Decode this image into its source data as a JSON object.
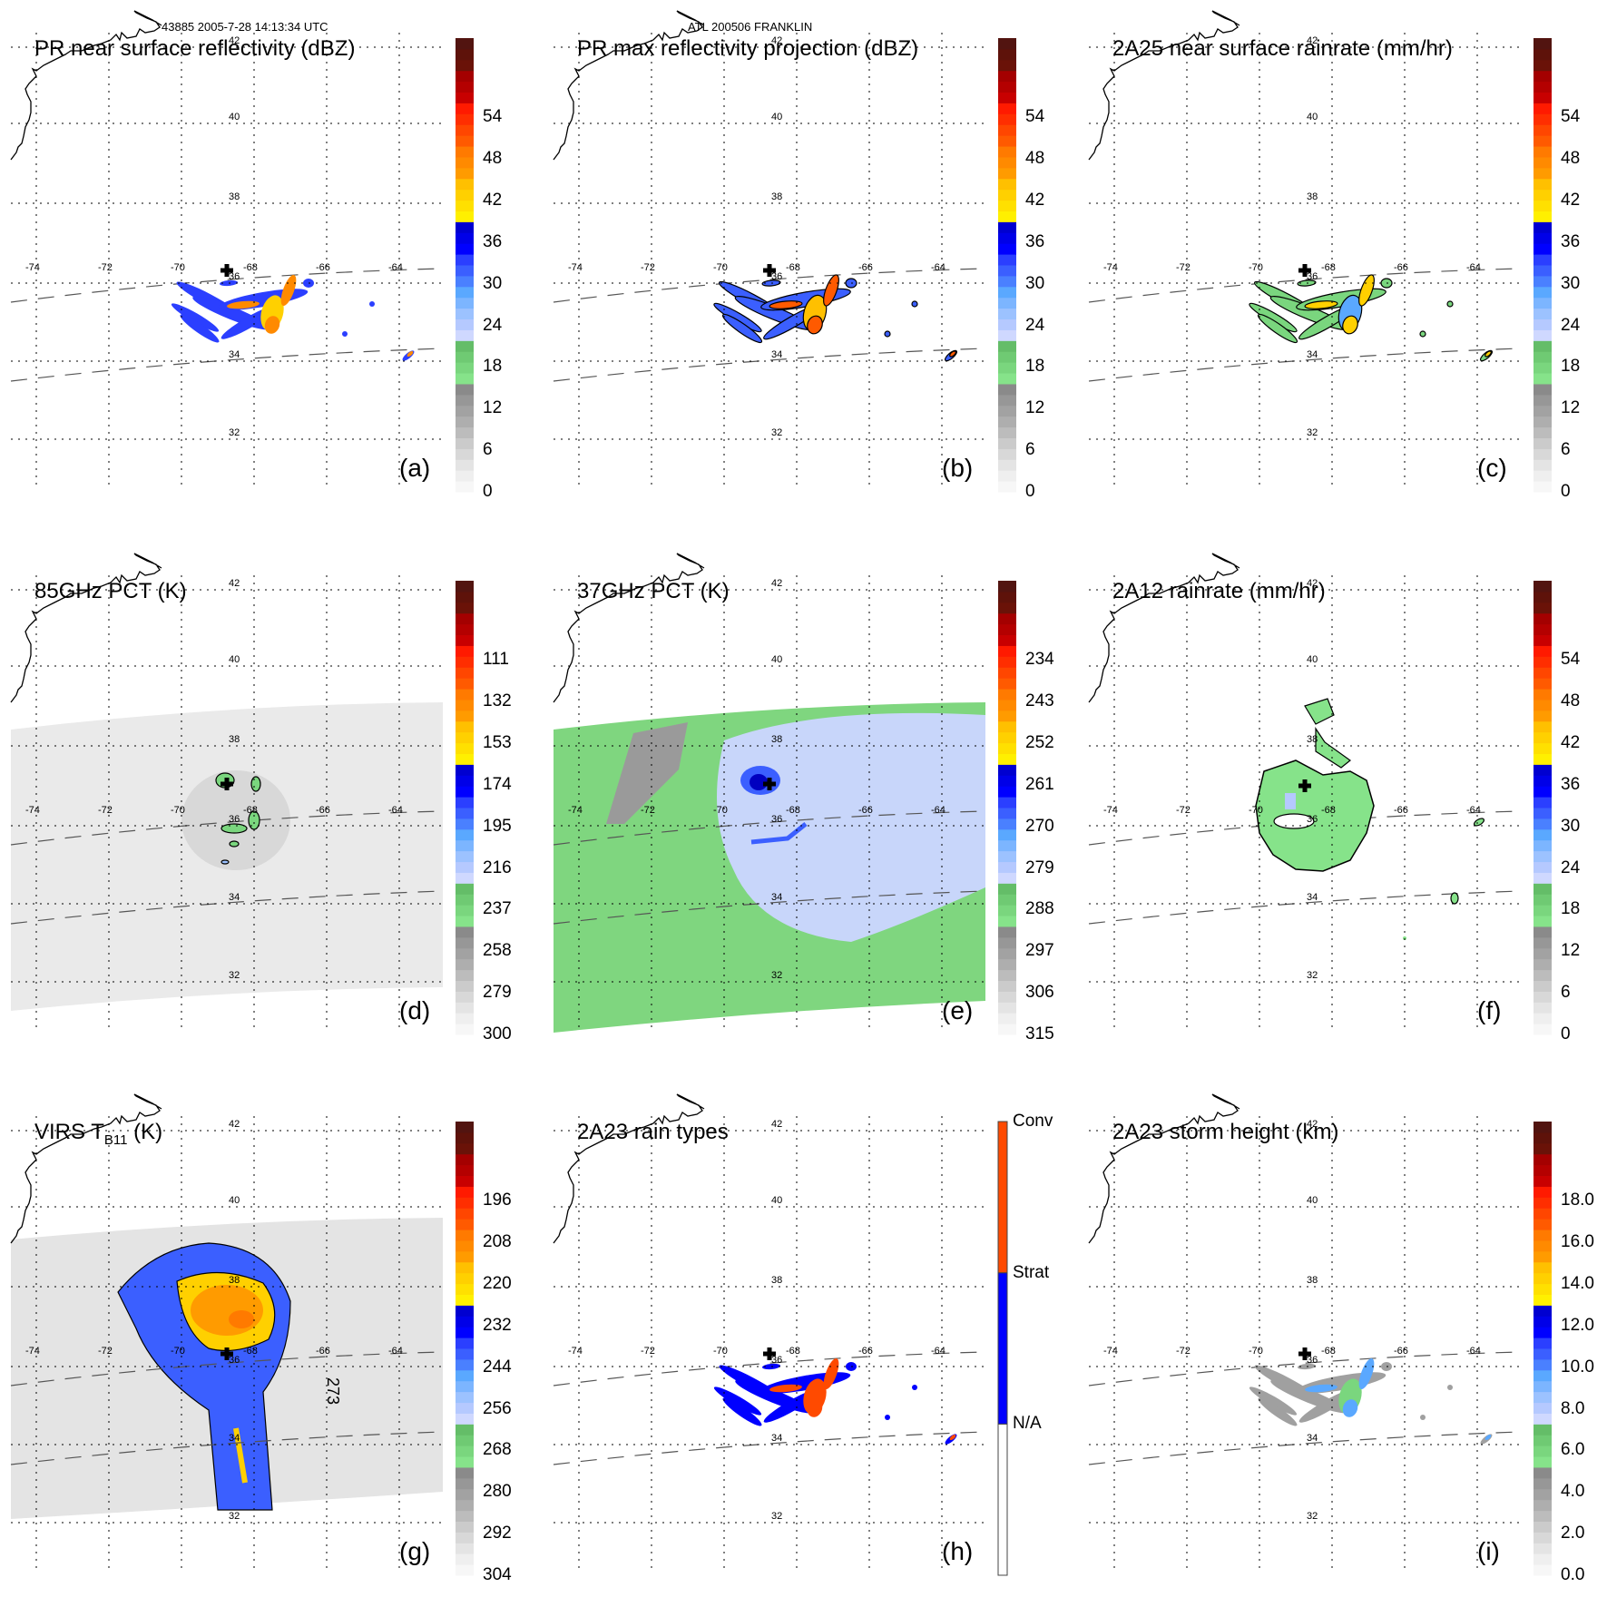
{
  "header": {
    "orbit_time": "43885 2005-7-28 14:13:34 UTC",
    "storm": "ATL 200506 FRANKLIN"
  },
  "map": {
    "lon_labels": [
      "-74",
      "-72",
      "-70",
      "-68",
      "-66",
      "-64"
    ],
    "lat_labels": [
      "42",
      "40",
      "38",
      "36",
      "34",
      "32"
    ],
    "storm_center_marker": "plus-icon"
  },
  "chart_data": [
    {
      "type": "heatmap",
      "id": "a",
      "panel_label": "(a)",
      "title": "PR near surface reflectivity (dBZ)",
      "colorbar": {
        "ticks": [
          "0",
          "6",
          "12",
          "18",
          "24",
          "30",
          "36",
          "42",
          "48",
          "54"
        ],
        "range": [
          0,
          60
        ]
      },
      "field_extent": "narrow PR swath; rain bands south of center near 35-36N, 70-67.5W; isolated cells near 34N, 64W",
      "swath": true
    },
    {
      "type": "heatmap",
      "id": "b",
      "panel_label": "(b)",
      "title": "PR max reflectivity projection (dBZ)",
      "colorbar": {
        "ticks": [
          "0",
          "6",
          "12",
          "18",
          "24",
          "30",
          "36",
          "42",
          "48",
          "54"
        ],
        "range": [
          0,
          60
        ]
      },
      "field_extent": "narrow PR swath; contoured bands south of center",
      "swath": true
    },
    {
      "type": "heatmap",
      "id": "c",
      "panel_label": "(c)",
      "title": "2A25 near surface rainrate (mm/hr)",
      "colorbar": {
        "ticks": [
          "0",
          "6",
          "12",
          "18",
          "24",
          "30",
          "36",
          "42",
          "48",
          "54"
        ],
        "range": [
          0,
          60
        ]
      },
      "field_extent": "narrow PR swath; light rain (green) bands",
      "swath": true
    },
    {
      "type": "heatmap",
      "id": "d",
      "panel_label": "(d)",
      "title": "85GHz PCT (K)",
      "colorbar": {
        "ticks": [
          "300",
          "279",
          "258",
          "237",
          "216",
          "195",
          "174",
          "153",
          "132",
          "111"
        ],
        "range": [
          300,
          90
        ]
      },
      "field_extent": "wide TMI swath grey; small cold cells near center",
      "swath": true
    },
    {
      "type": "heatmap",
      "id": "e",
      "panel_label": "(e)",
      "title": "37GHz PCT (K)",
      "colorbar": {
        "ticks": [
          "315",
          "306",
          "297",
          "288",
          "279",
          "270",
          "261",
          "252",
          "243",
          "234"
        ],
        "range": [
          315,
          225
        ]
      },
      "field_extent": "wide TMI swath; green background, light-blue storm region, dark-blue core at center",
      "swath": true
    },
    {
      "type": "heatmap",
      "id": "f",
      "panel_label": "(f)",
      "title": "2A12 rainrate (mm/hr)",
      "colorbar": {
        "ticks": [
          "0",
          "6",
          "12",
          "18",
          "24",
          "30",
          "36",
          "42",
          "48",
          "54"
        ],
        "range": [
          0,
          60
        ]
      },
      "field_extent": "green rain shield around center 34.5-38.5N, 70.5-66.5W",
      "swath": false
    },
    {
      "type": "heatmap",
      "id": "g",
      "panel_label": "(g)",
      "title": "VIRS T",
      "title_sub": "B11",
      "title_suffix": " (K)",
      "contour_label": "273",
      "colorbar": {
        "ticks": [
          "304",
          "292",
          "280",
          "268",
          "256",
          "244",
          "232",
          "220",
          "208",
          "196"
        ],
        "range": [
          304,
          184
        ]
      },
      "field_extent": "wide VIRS swath; cold cloud top (orange/yellow) over center, blue spiral bands",
      "swath": true
    },
    {
      "type": "heatmap",
      "id": "h",
      "panel_label": "(h)",
      "title": "2A23 rain types",
      "colorbar": {
        "categories": [
          "N/A",
          "Strat",
          "Conv"
        ]
      },
      "field_extent": "narrow PR swath; stratiform (blue) with convective (orange) cells",
      "swath": true
    },
    {
      "type": "heatmap",
      "id": "i",
      "panel_label": "(i)",
      "title": "2A23 storm height (km)",
      "colorbar": {
        "ticks": [
          "0.0",
          "2.0",
          "4.0",
          "6.0",
          "8.0",
          "10.0",
          "12.0",
          "14.0",
          "16.0",
          "18.0"
        ],
        "range": [
          0,
          20
        ]
      },
      "field_extent": "narrow PR swath; mostly grey/green heights",
      "swath": true
    }
  ],
  "colors": {
    "scale60": [
      "#f7f7f7",
      "#efefef",
      "#e4e4e4",
      "#d8d8d8",
      "#cbcbcb",
      "#bcbcbc",
      "#aeaeae",
      "#a2a2a2",
      "#979797",
      "#8a8a8a",
      "#86e38a",
      "#7ad67e",
      "#6fca73",
      "#64bd68",
      "#cfd8ff",
      "#b5c9ff",
      "#9cc2ff",
      "#7cb5ff",
      "#5aa8ff",
      "#4a80ff",
      "#3b5fff",
      "#2b3fff",
      "#0000ff",
      "#0000e8",
      "#0000d0",
      "#fff000",
      "#ffe000",
      "#ffd000",
      "#ffc000",
      "#ff9b00",
      "#ff8a00",
      "#ff7a00",
      "#ff5a00",
      "#ff4600",
      "#ff2e00",
      "#ff1a00",
      "#c80000",
      "#b40000",
      "#a40000",
      "#6a1208",
      "#5e120a",
      "#521410"
    ],
    "rain_type": {
      "N/A": "#ffffff",
      "Strat": "#0000ff",
      "Conv": "#ff4a00"
    },
    "gray_scene": "#e6e6e6",
    "green_scene": "#7fd67f",
    "lightblue_scene": "#c8d6fa"
  }
}
